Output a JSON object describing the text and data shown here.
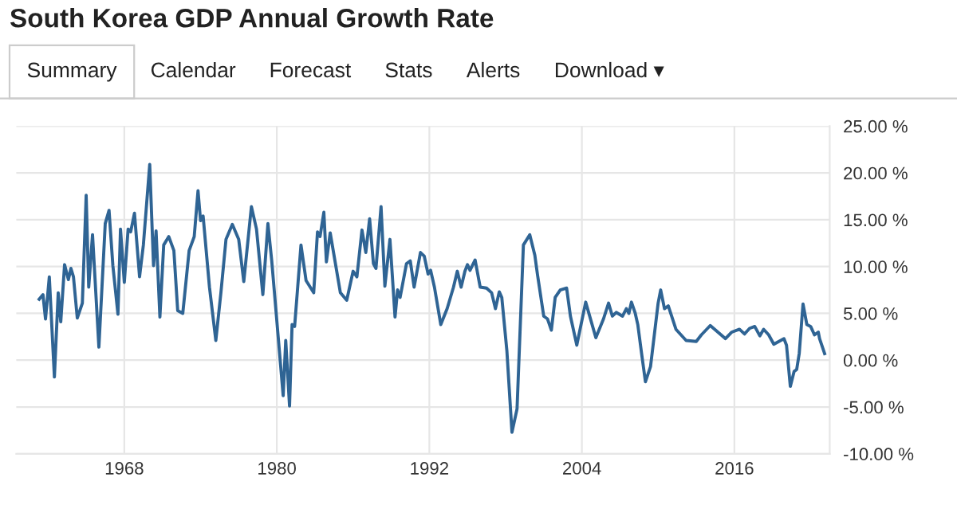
{
  "chart_data": {
    "type": "line",
    "title": "South Korea GDP Annual Growth Rate",
    "annotations": [
      "Summary",
      "Calendar",
      "Forecast",
      "Stats",
      "Alerts",
      "Download ▾"
    ],
    "x": [
      1961.3,
      1961.6,
      1961.8,
      1962.1,
      1962.5,
      1962.8,
      1963.0,
      1963.3,
      1963.6,
      1963.8,
      1964.0,
      1964.3,
      1964.7,
      1965.0,
      1965.2,
      1965.5,
      1966.0,
      1966.5,
      1966.8,
      1967.1,
      1967.5,
      1967.7,
      1968.0,
      1968.3,
      1968.5,
      1968.8,
      1969.2,
      1969.5,
      1970.0,
      1970.3,
      1970.5,
      1970.8,
      1971.1,
      1971.5,
      1971.9,
      1972.2,
      1972.6,
      1973.1,
      1973.5,
      1973.8,
      1974.0,
      1974.2,
      1974.7,
      1975.2,
      1975.6,
      1976.0,
      1976.5,
      1977.0,
      1977.4,
      1978.0,
      1978.4,
      1978.9,
      1979.3,
      1979.6,
      1980.5,
      1980.7,
      1981.0,
      1981.2,
      1981.4,
      1981.9,
      1982.3,
      1982.9,
      1983.2,
      1983.4,
      1983.7,
      1983.9,
      1984.2,
      1985.0,
      1985.5,
      1986.0,
      1986.3,
      1986.7,
      1987.0,
      1987.3,
      1987.6,
      1987.8,
      1988.2,
      1988.5,
      1988.9,
      1989.3,
      1989.5,
      1989.7,
      1990.2,
      1990.5,
      1990.8,
      1991.3,
      1991.6,
      1991.9,
      1992.1,
      1992.4,
      1992.9,
      1993.4,
      1993.9,
      1994.2,
      1994.5,
      1994.8,
      1995.0,
      1995.2,
      1995.6,
      1996.0,
      1996.5,
      1996.9,
      1997.2,
      1997.5,
      1997.7,
      1998.1,
      1998.5,
      1998.9,
      1999.4,
      1999.9,
      2000.3,
      2000.5,
      2001.0,
      2001.3,
      2001.6,
      2001.9,
      2002.3,
      2002.8,
      2003.1,
      2003.6,
      2004.3,
      2005.1,
      2005.7,
      2006.1,
      2006.4,
      2006.7,
      2007.2,
      2007.5,
      2007.7,
      2007.9,
      2008.2,
      2008.4,
      2008.7,
      2009.0,
      2009.4,
      2010.0,
      2010.2,
      2010.5,
      2010.8,
      2011.4,
      2012.2,
      2013.0,
      2013.4,
      2014.1,
      2014.7,
      2015.3,
      2015.8,
      2016.4,
      2016.8,
      2017.2,
      2017.6,
      2018.0,
      2018.3,
      2018.7,
      2019.1,
      2019.5,
      2019.9,
      2020.1,
      2020.4,
      2020.7,
      2020.9,
      2021.1,
      2021.4,
      2021.7,
      2022.0,
      2022.3,
      2022.6,
      2022.7,
      2023.1
    ],
    "series": [
      {
        "color": "#2f6494",
        "values": [
          6.5,
          7.0,
          4.4,
          8.9,
          -1.8,
          7.2,
          4.1,
          10.2,
          8.6,
          9.8,
          8.9,
          4.5,
          6.1,
          17.6,
          7.8,
          13.4,
          1.4,
          14.6,
          16.0,
          10.1,
          4.9,
          14.0,
          8.3,
          14.0,
          13.7,
          15.7,
          8.9,
          12.3,
          20.9,
          10.1,
          13.8,
          4.6,
          12.3,
          13.2,
          11.7,
          5.3,
          5.0,
          11.7,
          13.2,
          18.1,
          14.9,
          15.4,
          7.8,
          2.1,
          7.2,
          12.9,
          14.5,
          12.9,
          8.4,
          16.4,
          14.0,
          7.0,
          14.6,
          10.6,
          -3.8,
          2.1,
          -4.9,
          3.8,
          3.6,
          12.3,
          8.5,
          7.2,
          13.7,
          13.2,
          15.8,
          10.5,
          13.6,
          7.2,
          6.4,
          9.5,
          8.9,
          13.9,
          11.5,
          15.1,
          10.3,
          9.8,
          16.4,
          7.9,
          12.9,
          4.6,
          7.5,
          6.7,
          10.3,
          10.6,
          7.8,
          11.5,
          11.1,
          9.2,
          9.6,
          7.8,
          3.8,
          5.5,
          7.8,
          9.5,
          7.8,
          9.5,
          10.2,
          9.6,
          10.7,
          7.8,
          7.7,
          7.2,
          5.5,
          7.3,
          6.7,
          1.0,
          -7.7,
          -5.2,
          12.3,
          13.4,
          11.2,
          9.2,
          4.7,
          4.4,
          3.2,
          6.7,
          7.5,
          7.7,
          4.7,
          1.6,
          6.2,
          2.4,
          4.4,
          6.1,
          4.7,
          5.1,
          4.7,
          5.5,
          5.0,
          6.2,
          5.0,
          3.8,
          0.7,
          -2.3,
          -0.7,
          6.1,
          7.5,
          5.5,
          5.8,
          3.3,
          2.1,
          2.0,
          2.7,
          3.7,
          3.0,
          2.3,
          3.0,
          3.3,
          2.8,
          3.4,
          3.6,
          2.6,
          3.3,
          2.7,
          1.7,
          2.0,
          2.3,
          1.6,
          -2.8,
          -1.2,
          -1.0,
          0.7,
          6.0,
          3.8,
          3.6,
          2.7,
          3.0,
          2.3,
          0.7
        ]
      }
    ],
    "xlim": [
      1959.5,
      2023.5
    ],
    "xticks": [
      1968,
      1980,
      1992,
      2004,
      2016
    ],
    "ylim": [
      -10,
      25
    ],
    "yticks": [
      {
        "value": -10,
        "label": "-10.00 %"
      },
      {
        "value": -5,
        "label": "-5.00 %"
      },
      {
        "value": 0,
        "label": "0.00 %"
      },
      {
        "value": 5,
        "label": "5.00 %"
      },
      {
        "value": 10,
        "label": "10.00 %"
      },
      {
        "value": 15,
        "label": "15.00 %"
      },
      {
        "value": 20,
        "label": "20.00 %"
      },
      {
        "value": 25,
        "label": "25.00 %"
      }
    ],
    "grid": true,
    "legend": false,
    "marker": "none",
    "line_style": "solid"
  }
}
